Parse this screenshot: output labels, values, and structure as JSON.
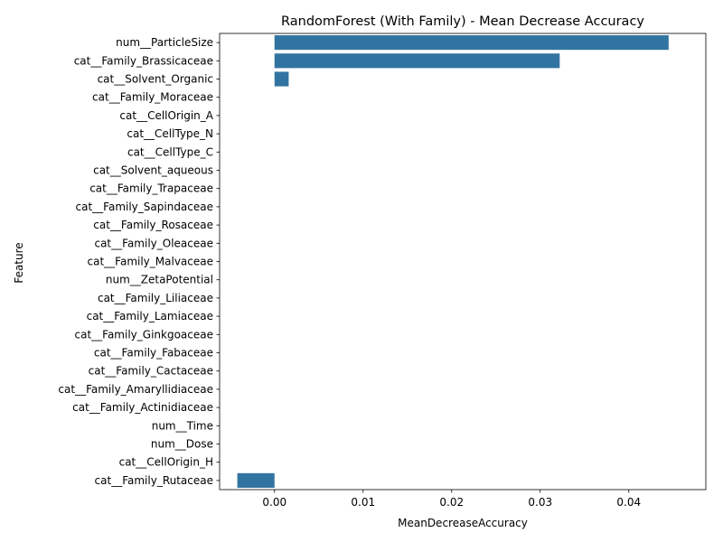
{
  "chart_data": {
    "type": "bar",
    "orientation": "horizontal",
    "title": "RandomForest (With Family) - Mean Decrease Accuracy",
    "xlabel": "MeanDecreaseAccuracy",
    "ylabel": "Feature",
    "xlim": [
      -0.0062,
      0.0487
    ],
    "x_ticks": [
      "0.00",
      "0.01",
      "0.02",
      "0.03",
      "0.04"
    ],
    "x_tick_values": [
      0,
      0.01,
      0.02,
      0.03,
      0.04
    ],
    "bar_color": "#3274a1",
    "grid": false,
    "legend": "none",
    "categories": [
      "num__ParticleSize",
      "cat__Family_Brassicaceae",
      "cat__Solvent_Organic",
      "cat__Family_Moraceae",
      "cat__CellOrigin_A",
      "cat__CellType_N",
      "cat__CellType_C",
      "cat__Solvent_aqueous",
      "cat__Family_Trapaceae",
      "cat__Family_Sapindaceae",
      "cat__Family_Rosaceae",
      "cat__Family_Oleaceae",
      "cat__Family_Malvaceae",
      "num__ZetaPotential",
      "cat__Family_Liliaceae",
      "cat__Family_Lamiaceae",
      "cat__Family_Ginkgoaceae",
      "cat__Family_Fabaceae",
      "cat__Family_Cactaceae",
      "cat__Family_Amaryllidiaceae",
      "cat__Family_Actinidiaceae ",
      "num__Time",
      "num__Dose",
      "cat__CellOrigin_H",
      "cat__Family_Rutaceae"
    ],
    "values": [
      0.0445,
      0.0322,
      0.0016,
      0,
      0,
      0,
      0,
      0,
      0,
      0,
      0,
      0,
      0,
      0,
      0,
      0,
      0,
      0,
      0,
      0,
      0,
      0,
      0,
      0,
      -0.0042
    ]
  }
}
